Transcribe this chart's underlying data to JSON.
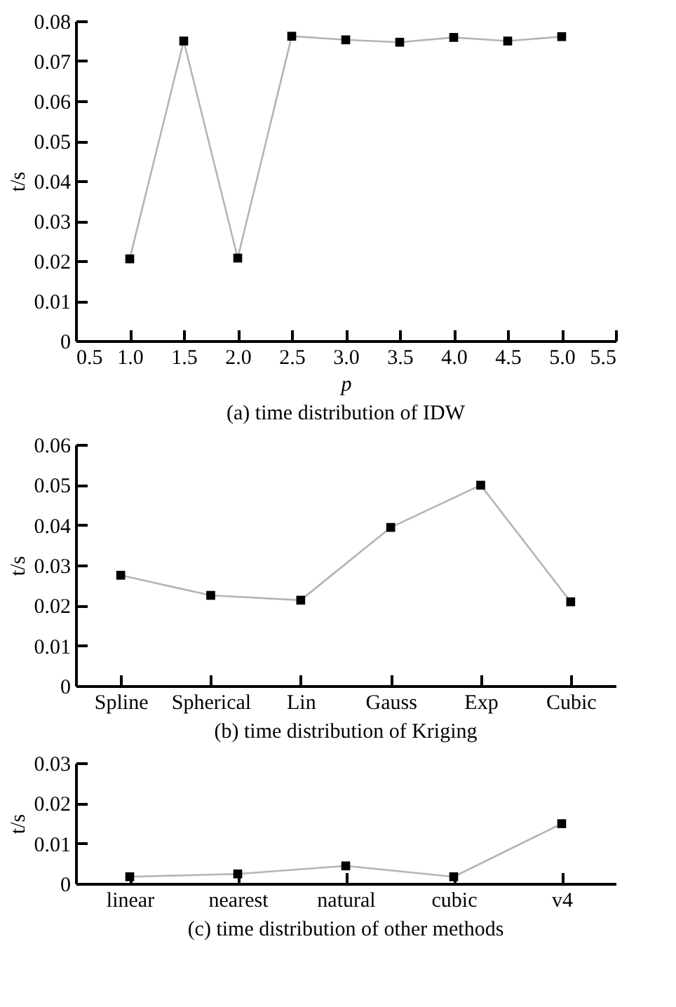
{
  "chart_data": [
    {
      "type": "line",
      "title": "(a) time distribution of IDW",
      "xlabel": "p",
      "ylabel": "t/s",
      "x": [
        1.0,
        1.5,
        2.0,
        2.5,
        3.0,
        3.5,
        4.0,
        4.5,
        5.0
      ],
      "series": [
        {
          "color": "#b4b4b4",
          "values": [
            0.0205,
            0.075,
            0.0207,
            0.0762,
            0.0753,
            0.0747,
            0.0759,
            0.075,
            0.0761
          ]
        }
      ],
      "xlim": [
        0.5,
        5.5
      ],
      "xticks": [
        0.5,
        {
          "value": 1,
          "label": "1.0"
        },
        1.5,
        {
          "value": 2,
          "label": "2.0"
        },
        2.5,
        {
          "value": 3,
          "label": "3.0"
        },
        3.5,
        {
          "value": 4,
          "label": "4.0"
        },
        4.5,
        {
          "value": 5,
          "label": "5.0"
        },
        5.5
      ],
      "ylim": [
        0,
        0.08
      ],
      "yticks": [
        0,
        0.01,
        0.02,
        0.03,
        0.04,
        0.05,
        0.06,
        0.07,
        0.08
      ],
      "grid": false,
      "marker": "square"
    },
    {
      "type": "line",
      "title": "(b) time distribution of Kriging",
      "ylabel": "t/s",
      "categories": [
        "Spline",
        "Spherical",
        "Lin",
        "Gauss",
        "Exp",
        "Cubic"
      ],
      "series": [
        {
          "color": "#b4b4b4",
          "values": [
            0.0275,
            0.0225,
            0.0213,
            0.0394,
            0.0499,
            0.0209
          ]
        }
      ],
      "ylim": [
        0,
        0.06
      ],
      "yticks": [
        0,
        0.01,
        0.02,
        0.03,
        0.04,
        0.05,
        0.06
      ],
      "grid": false,
      "marker": "square"
    },
    {
      "type": "line",
      "title": "(c) time distribution of other methods",
      "ylabel": "t/s",
      "categories": [
        "linear",
        "nearest",
        "natural",
        "cubic",
        "v4"
      ],
      "series": [
        {
          "color": "#b4b4b4",
          "values": [
            0.0017,
            0.0024,
            0.0044,
            0.0017,
            0.0149
          ]
        }
      ],
      "ylim": [
        0,
        0.03
      ],
      "yticks": [
        0,
        0.01,
        0.02,
        0.03
      ],
      "grid": false,
      "marker": "square"
    }
  ]
}
